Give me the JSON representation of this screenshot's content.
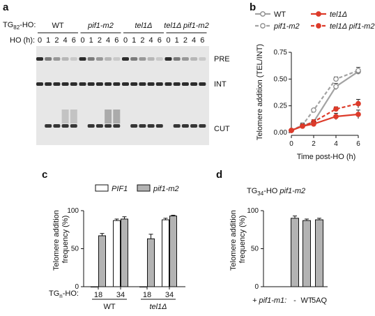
{
  "panels": {
    "a": "a",
    "b": "b",
    "c": "c",
    "d": "d"
  },
  "gel": {
    "construct_label": "TG",
    "construct_sub": "82",
    "construct_suffix": "-HO:",
    "hours_label": "HO (h):",
    "groups": [
      {
        "name": "WT",
        "italic": false
      },
      {
        "name": "pif1-m2",
        "italic": true
      },
      {
        "name": "tel1Δ",
        "italic": true
      },
      {
        "name": "tel1Δ pif1-m2",
        "italic": true
      }
    ],
    "time_labels": [
      "0",
      "1",
      "2",
      "4",
      "6"
    ],
    "band_labels": [
      "PRE",
      "INT",
      "CUT"
    ],
    "colors": {
      "band": "#222222",
      "background": "#e9e9e9"
    }
  },
  "figure_b": {
    "legend": [
      "WT",
      "tel1Δ",
      "pif1-m2",
      "tel1Δ pif1-m2"
    ],
    "xlabel": "Time post-HO (h)",
    "ylabel": "Telomere addition (TEL/INT)",
    "x_ticks": [
      "0",
      "2",
      "4",
      "6"
    ],
    "y_ticks": [
      "0.00",
      "0.25",
      "0.50",
      "0.75"
    ]
  },
  "figure_c": {
    "legend": [
      "PIF1",
      "pif1-m2"
    ],
    "ylabel_line1": "Telomere addition",
    "ylabel_line2": "frequency (%)",
    "y_ticks": [
      "0",
      "50",
      "100"
    ],
    "x_prefix": "TG",
    "x_prefix_sub": "n",
    "x_prefix_suffix": "-HO:",
    "x_tick_labels": [
      "18",
      "34",
      "18",
      "34"
    ],
    "group_labels": [
      {
        "name": "WT",
        "italic": false
      },
      {
        "name": "tel1Δ",
        "italic": true
      }
    ]
  },
  "figure_d": {
    "title_prefix": "TG",
    "title_sub": "34",
    "title_suffix": "-HO ",
    "title_italic": "pif1-m2",
    "ylabel_line1": "Telomere addition",
    "ylabel_line2": "frequency (%)",
    "y_ticks": [
      "0",
      "50",
      "100"
    ],
    "x_prefix": "+ pif1-m1:",
    "x_tick_labels": [
      "-",
      "WT",
      "5AQ"
    ]
  },
  "chart_data": [
    {
      "type": "line",
      "x": [
        0,
        1,
        2,
        4,
        6
      ],
      "xlim": [
        0,
        6
      ],
      "ylim": [
        0,
        0.75
      ],
      "xlabel": "Time post-HO (h)",
      "ylabel": "Telomere addition (TEL/INT)",
      "grid": false,
      "legend_position": "top",
      "series": [
        {
          "name": "WT",
          "values": [
            0.02,
            0.06,
            0.1,
            0.43,
            0.57
          ],
          "errors": [
            0.01,
            0.02,
            0.01,
            0.03,
            0.02
          ],
          "color": "#a3a3a3",
          "dashed": false
        },
        {
          "name": "pif1-m2",
          "values": [
            0.02,
            0.07,
            0.21,
            0.5,
            0.58
          ],
          "errors": [
            0.01,
            0.02,
            0.01,
            0.02,
            0.03
          ],
          "color": "#a3a3a3",
          "dashed": true
        },
        {
          "name": "tel1Δ",
          "values": [
            0.02,
            0.06,
            0.08,
            0.15,
            0.17
          ],
          "errors": [
            0.01,
            0.02,
            0.02,
            0.03,
            0.04
          ],
          "color": "#dd3b2a",
          "dashed": false
        },
        {
          "name": "tel1Δ pif1-m2",
          "values": [
            0.02,
            0.06,
            0.1,
            0.22,
            0.27
          ],
          "errors": [
            0.01,
            0.02,
            0.02,
            0.02,
            0.04
          ],
          "color": "#dd3b2a",
          "dashed": true
        }
      ]
    },
    {
      "type": "bar",
      "categories": [
        "18",
        "34",
        "18",
        "34"
      ],
      "ylim": [
        0,
        100
      ],
      "ylabel": "Telomere addition frequency (%)",
      "series": [
        {
          "name": "PIF1",
          "values": [
            0,
            87,
            0,
            88
          ],
          "errors": [
            0,
            2,
            0,
            2
          ],
          "color": "#ffffff"
        },
        {
          "name": "pif1-m2",
          "values": [
            67,
            89,
            63,
            93
          ],
          "errors": [
            3,
            3,
            6,
            1
          ],
          "color": "#b3b3b3"
        }
      ]
    },
    {
      "type": "bar",
      "categories": [
        "-",
        "WT",
        "5AQ"
      ],
      "ylim": [
        0,
        100
      ],
      "ylabel": "Telomere addition frequency (%)",
      "series": [
        {
          "values": [
            90,
            87,
            88
          ],
          "errors": [
            3,
            2,
            2
          ],
          "color": "#b3b3b3"
        }
      ]
    }
  ]
}
